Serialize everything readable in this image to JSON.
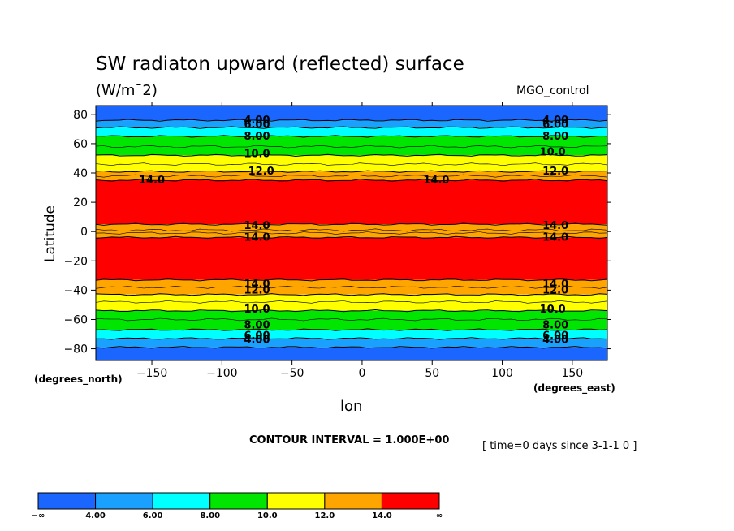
{
  "chart_data": {
    "type": "heatmap",
    "title": "SW radiaton upward (reflected) surface",
    "units": "(W/m^2)",
    "units_display": "(W/m¯2)",
    "dataset": "MGO_control",
    "xlabel": "lon",
    "ylabel": "Latitude",
    "x_units": "(degrees_east)",
    "y_units": "(degrees_north)",
    "xlim": [
      -190,
      175
    ],
    "ylim": [
      -88,
      86
    ],
    "x_ticks": [
      -150,
      -100,
      -50,
      0,
      50,
      100,
      150
    ],
    "x_tick_labels": [
      "−150",
      "−100",
      "−50",
      "0",
      "50",
      "100",
      "150"
    ],
    "y_ticks": [
      80,
      60,
      40,
      20,
      0,
      -20,
      -40,
      -60,
      -80
    ],
    "y_tick_labels": [
      "80",
      "60",
      "40",
      "20",
      "0",
      "−20",
      "−40",
      "−60",
      "−80"
    ],
    "contour_interval": "CONTOUR INTERVAL = 1.000E+00",
    "time_label": "[ time=0 days since 3-1-1 0 ]",
    "levels": [
      4,
      6,
      8,
      10,
      12,
      14
    ],
    "colorbar": {
      "colors": [
        "#1a66ff",
        "#1aa0ff",
        "#00ffff",
        "#00e600",
        "#ffff00",
        "#ffa500",
        "#ff0000"
      ],
      "labels": [
        "−∞",
        "4.00",
        "6.00",
        "8.00",
        "10.0",
        "12.0",
        "14.0",
        "∞"
      ]
    },
    "bands": [
      {
        "lat_from": 86,
        "lat_to": 76,
        "value_range": "<4",
        "color": "#1a66ff"
      },
      {
        "lat_from": 76,
        "lat_to": 71,
        "value_range": "4-6",
        "color": "#1aa0ff"
      },
      {
        "lat_from": 71,
        "lat_to": 65,
        "value_range": "6-8",
        "color": "#00ffff"
      },
      {
        "lat_from": 65,
        "lat_to": 52,
        "value_range": "8-10",
        "color": "#00e600"
      },
      {
        "lat_from": 52,
        "lat_to": 41,
        "value_range": "10-12",
        "color": "#ffff00"
      },
      {
        "lat_from": 41,
        "lat_to": 35,
        "value_range": "12-14",
        "color": "#ffa500"
      },
      {
        "lat_from": 35,
        "lat_to": 5,
        "value_range": ">14",
        "color": "#ff0000"
      },
      {
        "lat_from": 5,
        "lat_to": -4,
        "value_range": "12-14",
        "color": "#ffa500"
      },
      {
        "lat_from": -4,
        "lat_to": -33,
        "value_range": ">14",
        "color": "#ff0000"
      },
      {
        "lat_from": -33,
        "lat_to": -43,
        "value_range": "12-14",
        "color": "#ffa500"
      },
      {
        "lat_from": -43,
        "lat_to": -54,
        "value_range": "10-12",
        "color": "#ffff00"
      },
      {
        "lat_from": -54,
        "lat_to": -67,
        "value_range": "8-10",
        "color": "#00e600"
      },
      {
        "lat_from": -67,
        "lat_to": -73,
        "value_range": "6-8",
        "color": "#00ffff"
      },
      {
        "lat_from": -73,
        "lat_to": -79,
        "value_range": "4-6",
        "color": "#1aa0ff"
      },
      {
        "lat_from": -79,
        "lat_to": -88,
        "value_range": "<4",
        "color": "#1a66ff"
      }
    ],
    "contour_labels": [
      {
        "text": "4.00",
        "lon": -75,
        "lat": 76
      },
      {
        "text": "6.00",
        "lon": -75,
        "lat": 73
      },
      {
        "text": "8.00",
        "lon": -75,
        "lat": 65
      },
      {
        "text": "10.0",
        "lon": -75,
        "lat": 53
      },
      {
        "text": "12.0",
        "lon": -72,
        "lat": 41
      },
      {
        "text": "14.0",
        "lon": -150,
        "lat": 35
      },
      {
        "text": "14.0",
        "lon": 53,
        "lat": 35
      },
      {
        "text": "14.0",
        "lon": -75,
        "lat": 4
      },
      {
        "text": "14.0",
        "lon": -75,
        "lat": -4
      },
      {
        "text": "14.0",
        "lon": -75,
        "lat": -36
      },
      {
        "text": "12.0",
        "lon": -75,
        "lat": -40
      },
      {
        "text": "10.0",
        "lon": -75,
        "lat": -53
      },
      {
        "text": "8.00",
        "lon": -75,
        "lat": -64
      },
      {
        "text": "6.00",
        "lon": -75,
        "lat": -71
      },
      {
        "text": "4.00",
        "lon": -75,
        "lat": -74
      },
      {
        "text": "4.00",
        "lon": 138,
        "lat": 76
      },
      {
        "text": "6.00",
        "lon": 138,
        "lat": 73
      },
      {
        "text": "8.00",
        "lon": 138,
        "lat": 65
      },
      {
        "text": "10.0",
        "lon": 136,
        "lat": 54
      },
      {
        "text": "12.0",
        "lon": 138,
        "lat": 41
      },
      {
        "text": "14.0",
        "lon": 138,
        "lat": 4
      },
      {
        "text": "14.0",
        "lon": 138,
        "lat": -4
      },
      {
        "text": "14.0",
        "lon": 138,
        "lat": -36
      },
      {
        "text": "12.0",
        "lon": 138,
        "lat": -40
      },
      {
        "text": "10.0",
        "lon": 136,
        "lat": -53
      },
      {
        "text": "8.00",
        "lon": 138,
        "lat": -64
      },
      {
        "text": "6.00",
        "lon": 138,
        "lat": -71
      },
      {
        "text": "4.00",
        "lon": 138,
        "lat": -74
      }
    ]
  }
}
